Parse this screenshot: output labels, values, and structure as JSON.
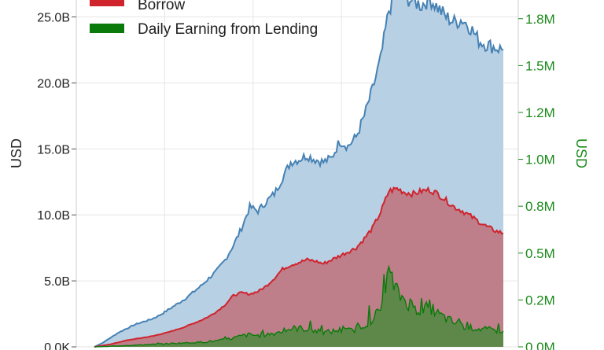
{
  "colors": {
    "supply_fill": "#b3cde3",
    "supply_line": "#4682b4",
    "borrow_fill": "#c0707a",
    "borrow_line": "#d0242d",
    "earn_fill": "#4e8a3e",
    "earn_line": "#0a7a0a",
    "right_axis_text": "#1a8a1a",
    "grid": "#e6e6e6"
  },
  "chart_data": {
    "type": "area",
    "y_left_label": "USD",
    "y_right_label": "USD",
    "y_left_range": [
      0,
      27000000000
    ],
    "y_right_range": [
      0,
      1900000
    ],
    "y_left_ticks": [
      {
        "value": 0,
        "label": "0.0K"
      },
      {
        "value": 5000000000,
        "label": "5.0B"
      },
      {
        "value": 10000000000,
        "label": "10.0B"
      },
      {
        "value": 15000000000,
        "label": "15.0B"
      },
      {
        "value": 20000000000,
        "label": "20.0B"
      },
      {
        "value": 25000000000,
        "label": "25.0B"
      }
    ],
    "y_right_ticks": [
      {
        "value": 0,
        "label": "0.0M"
      },
      {
        "value": 250000,
        "label": "0.2M"
      },
      {
        "value": 500000,
        "label": "0.5M"
      },
      {
        "value": 750000,
        "label": "0.8M"
      },
      {
        "value": 1000000,
        "label": "1.0M"
      },
      {
        "value": 1250000,
        "label": "1.2M"
      },
      {
        "value": 1500000,
        "label": "1.5M"
      },
      {
        "value": 1750000,
        "label": "1.8M"
      }
    ],
    "grid": true,
    "legend_position": "top-left",
    "legend": [
      {
        "label": "Borrow",
        "color_key": "borrow_line"
      },
      {
        "label": "Daily Earning from Lending",
        "color_key": "earn_line"
      }
    ],
    "x": [
      0,
      2,
      4,
      6,
      8,
      10,
      12,
      14,
      16,
      18,
      20,
      22,
      24,
      26,
      28,
      30,
      32,
      34,
      36,
      38,
      40,
      42,
      44,
      46,
      48,
      50,
      52,
      54,
      56,
      58,
      60,
      62,
      64,
      66,
      68,
      70,
      72,
      74,
      76,
      78,
      80,
      82,
      84,
      86,
      88,
      90,
      92,
      94,
      96,
      98,
      100
    ],
    "series": [
      {
        "color_key": "supply",
        "axis": "left",
        "values": [
          0.0,
          0.3,
          0.7,
          1.1,
          1.4,
          1.7,
          1.9,
          2.1,
          2.4,
          2.8,
          3.2,
          3.6,
          4.1,
          4.6,
          5.2,
          5.8,
          6.6,
          7.7,
          9.0,
          10.6,
          10.3,
          11.0,
          11.6,
          12.8,
          14.0,
          14.2,
          14.5,
          14.2,
          14.0,
          14.3,
          15.6,
          15.2,
          15.9,
          17.5,
          19.5,
          21.8,
          25.5,
          27.0,
          26.5,
          26.2,
          25.9,
          26.4,
          25.7,
          25.0,
          24.6,
          24.8,
          24.2,
          23.2,
          22.9,
          22.7,
          22.5
        ]
      },
      {
        "name": "Borrow",
        "color_key": "borrow",
        "axis": "left",
        "values": [
          0.0,
          0.1,
          0.2,
          0.35,
          0.5,
          0.6,
          0.7,
          0.8,
          0.95,
          1.1,
          1.3,
          1.5,
          1.75,
          2.0,
          2.3,
          2.7,
          3.2,
          3.9,
          4.1,
          4.0,
          4.2,
          4.6,
          5.2,
          5.9,
          6.2,
          6.4,
          6.6,
          6.5,
          6.3,
          6.6,
          6.9,
          7.2,
          7.5,
          8.2,
          9.0,
          10.2,
          11.8,
          12.0,
          11.7,
          11.6,
          11.8,
          11.9,
          11.6,
          11.1,
          10.6,
          10.3,
          9.9,
          9.5,
          9.1,
          8.8,
          8.6
        ]
      },
      {
        "name": "Daily Earning from Lending",
        "color_key": "earn",
        "axis": "right",
        "values": [
          0,
          1500,
          3000,
          5000,
          7000,
          9000,
          11000,
          13000,
          15000,
          17000,
          19000,
          21000,
          23000,
          25000,
          28000,
          32000,
          38000,
          47000,
          58000,
          65000,
          60000,
          66000,
          72000,
          84000,
          96000,
          100000,
          94000,
          86000,
          76000,
          82000,
          90000,
          86000,
          94000,
          118000,
          148000,
          200000,
          390000,
          290000,
          250000,
          215000,
          190000,
          215000,
          175000,
          150000,
          128000,
          112000,
          102000,
          96000,
          92000,
          88000,
          84000
        ]
      }
    ]
  }
}
